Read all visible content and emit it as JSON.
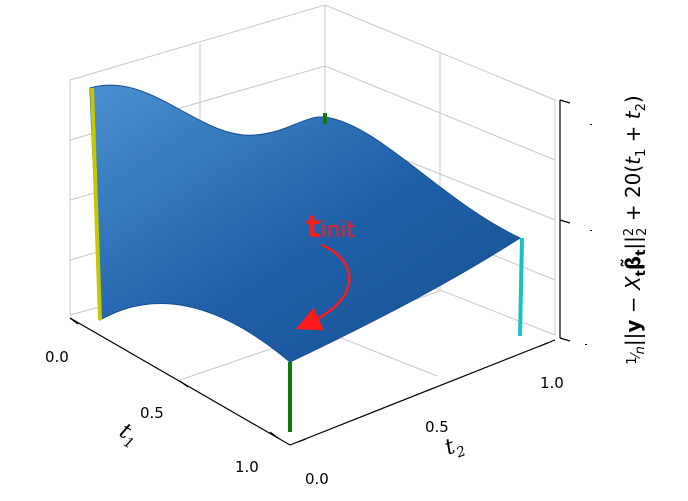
{
  "chart_data": {
    "type": "surface",
    "title": "",
    "xlabel": "t₁",
    "ylabel": "t₂",
    "zlabel": "(1/n)||y − X_t β̃_t||₂² + 20(t₁ + t₂)",
    "x_ticks": [
      "0.0",
      "0.5",
      "1.0"
    ],
    "y_ticks": [
      "0.0",
      "0.5",
      "1.0"
    ],
    "xlim": [
      0,
      1
    ],
    "ylim": [
      0,
      1
    ],
    "grid": true,
    "colors": {
      "surface": "#1f5fa8",
      "surface_light": "#4a90d0",
      "annotation": "#ff1a1a"
    },
    "corner_heights": {
      "t1_0_t2_0": 0.92,
      "t1_0_t2_1": 0.75,
      "t1_1_t2_0": 0.05,
      "t1_1_t2_1": 0.3
    },
    "corner_posts": [
      {
        "t1": 0,
        "t2": 0,
        "color": "#c8c800"
      },
      {
        "t1": 0,
        "t2": 1,
        "color": "#0a7a0a"
      },
      {
        "t1": 1,
        "t2": 0,
        "color": "#0a7a0a"
      },
      {
        "t1": 1,
        "t2": 1,
        "color": "#18c0c8"
      }
    ],
    "annotation": {
      "label": "t",
      "subscript": "init",
      "start": [
        0.55,
        0.45
      ],
      "end": [
        0.8,
        0.2
      ]
    }
  }
}
